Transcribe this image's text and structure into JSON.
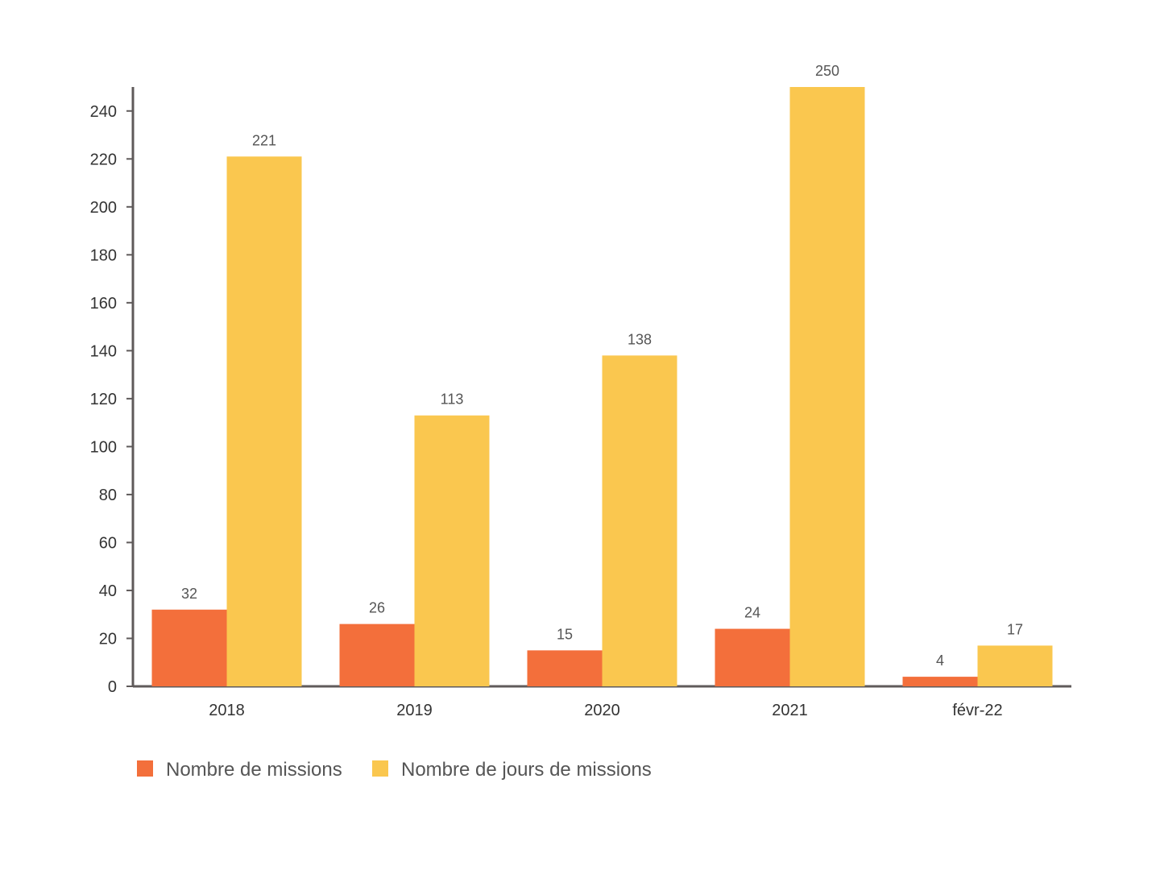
{
  "chart_data": {
    "type": "bar",
    "title": "",
    "xlabel": "",
    "ylabel": "",
    "categories": [
      "2018",
      "2019",
      "2020",
      "2021",
      "févr-22"
    ],
    "series": [
      {
        "name": "Nombre de missions",
        "color": "#f36f3b",
        "values": [
          32,
          26,
          15,
          24,
          4
        ]
      },
      {
        "name": "Nombre de jours de missions",
        "color": "#fac74f",
        "values": [
          221,
          113,
          138,
          250,
          17
        ]
      }
    ],
    "ylim": [
      0,
      250
    ],
    "yticks": [
      0,
      20,
      40,
      60,
      80,
      100,
      120,
      140,
      160,
      180,
      200,
      220,
      240
    ],
    "grid": false,
    "legend_position": "bottom-left"
  }
}
